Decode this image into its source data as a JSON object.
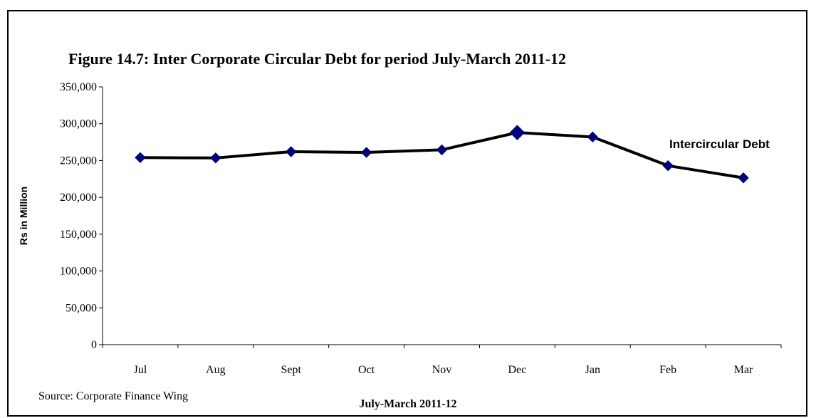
{
  "chart_data": {
    "type": "line",
    "title": "Figure 14.7: Inter Corporate Circular Debt for period July-March 2011-12",
    "xlabel": "July-March 2011-12",
    "ylabel": "Rs in Million",
    "categories": [
      "Jul",
      "Aug",
      "Sept",
      "Oct",
      "Nov",
      "Dec",
      "Jan",
      "Feb",
      "Mar"
    ],
    "series": [
      {
        "name": "Intercircular Debt",
        "values": [
          254000,
          253500,
          262000,
          261000,
          264500,
          288000,
          282000,
          243000,
          226500
        ],
        "color": "#000000",
        "marker_color": "#000080",
        "highlight_index": 5
      }
    ],
    "ylim": [
      0,
      350000
    ],
    "yticks": [
      "0",
      "50,000",
      "100,000",
      "150,000",
      "200,000",
      "250,000",
      "300,000",
      "350,000"
    ],
    "ytick_values": [
      0,
      50000,
      100000,
      150000,
      200000,
      250000,
      300000,
      350000
    ],
    "grid": false,
    "legend": "inline-right"
  },
  "source": "Source: Corporate Finance Wing"
}
